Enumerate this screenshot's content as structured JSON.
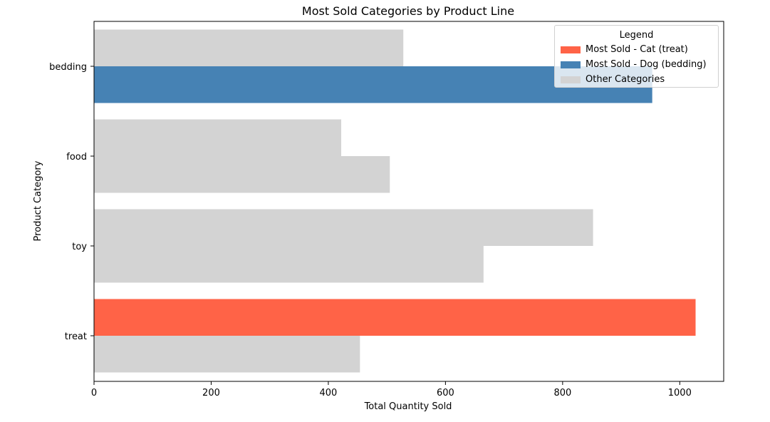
{
  "chart_data": {
    "type": "bar",
    "orientation": "horizontal",
    "title": "Most Sold Categories by Product Line",
    "xlabel": "Total Quantity Sold",
    "ylabel": "Product Category",
    "categories": [
      "bedding",
      "food",
      "toy",
      "treat"
    ],
    "xlim": [
      0,
      1075
    ],
    "xticks": [
      0,
      200,
      400,
      600,
      800,
      1000
    ],
    "grid": false,
    "series": [
      {
        "values": [
          528,
          422,
          852,
          1027
        ]
      },
      {
        "values": [
          953,
          505,
          665,
          454
        ]
      }
    ],
    "highlights": [
      {
        "category": "treat",
        "series": 0,
        "color": "#ff6347"
      },
      {
        "category": "bedding",
        "series": 1,
        "color": "#4682b4"
      }
    ],
    "default_color": "#d3d3d3",
    "legend": {
      "title": "Legend",
      "placement": "top-right",
      "items": [
        {
          "label": "Most Sold - Cat (treat)",
          "color": "#ff6347"
        },
        {
          "label": "Most Sold - Dog (bedding)",
          "color": "#4682b4"
        },
        {
          "label": "Other Categories",
          "color": "#d3d3d3"
        }
      ]
    }
  }
}
